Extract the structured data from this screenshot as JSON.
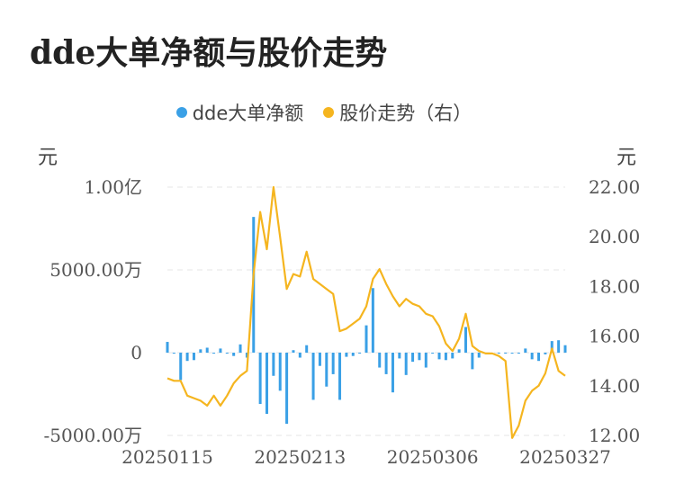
{
  "chart_data": {
    "type": "bar+line",
    "title": "dde大单净额与股价走势",
    "legend": {
      "placement": "top-center",
      "items": [
        {
          "label": "dde大单净额",
          "color": "#3aa0e6"
        },
        {
          "label": "股价走势（右）",
          "color": "#f5b51f"
        }
      ]
    },
    "left_axis": {
      "unit": "元",
      "ticks": [
        "1.00亿",
        "5000.00万",
        "0",
        "-5000.00万"
      ],
      "tick_values": [
        10000,
        5000,
        0,
        -5000
      ],
      "range": [
        -5000,
        10000
      ],
      "value_unit": "万"
    },
    "right_axis": {
      "unit": "元",
      "ticks": [
        "22.00",
        "20.00",
        "18.00",
        "16.00",
        "14.00",
        "12.00"
      ],
      "tick_values": [
        22,
        20,
        18,
        16,
        14,
        12
      ],
      "range": [
        12,
        22
      ]
    },
    "x_ticks": [
      {
        "label": "20250115",
        "index": 0
      },
      {
        "label": "20250213",
        "index": 20
      },
      {
        "label": "20250306",
        "index": 40
      },
      {
        "label": "20250327",
        "index": 60
      }
    ],
    "grid": true,
    "series": [
      {
        "name": "dde大单净额",
        "type": "bar",
        "axis": "left",
        "color": "#3aa0e6",
        "values": [
          650,
          -50,
          -1650,
          -500,
          -450,
          200,
          300,
          -50,
          250,
          -50,
          -200,
          500,
          -300,
          8200,
          -3100,
          -3700,
          -1400,
          -2300,
          -4300,
          150,
          -300,
          450,
          -2850,
          -800,
          -2050,
          -1300,
          -2850,
          -250,
          -200,
          -50,
          1650,
          3900,
          -900,
          -1300,
          -2400,
          -350,
          -1350,
          -550,
          -450,
          -900,
          -50,
          -400,
          -450,
          -350,
          200,
          1550,
          -1000,
          -300,
          -50,
          0,
          -50,
          -50,
          -50,
          -50,
          250,
          -400,
          -500,
          -100,
          700,
          750,
          450
        ],
        "categories_count": 61
      },
      {
        "name": "股价走势（右）",
        "type": "line",
        "axis": "right",
        "color": "#f5b51f",
        "values": [
          14.3,
          14.2,
          14.2,
          13.6,
          13.5,
          13.4,
          13.2,
          13.6,
          13.2,
          13.6,
          14.1,
          14.4,
          14.6,
          18.5,
          21.0,
          19.5,
          22.0,
          20.0,
          17.9,
          18.5,
          18.4,
          19.4,
          18.3,
          18.1,
          17.9,
          17.7,
          16.2,
          16.3,
          16.5,
          16.7,
          17.2,
          18.3,
          18.7,
          18.1,
          17.6,
          17.2,
          17.5,
          17.3,
          17.2,
          16.9,
          16.8,
          16.4,
          15.7,
          15.4,
          15.9,
          16.9,
          15.6,
          15.4,
          15.3,
          15.3,
          15.2,
          15.0,
          11.9,
          12.4,
          13.4,
          13.8,
          14.0,
          14.5,
          15.5,
          14.6,
          14.4
        ]
      }
    ]
  }
}
